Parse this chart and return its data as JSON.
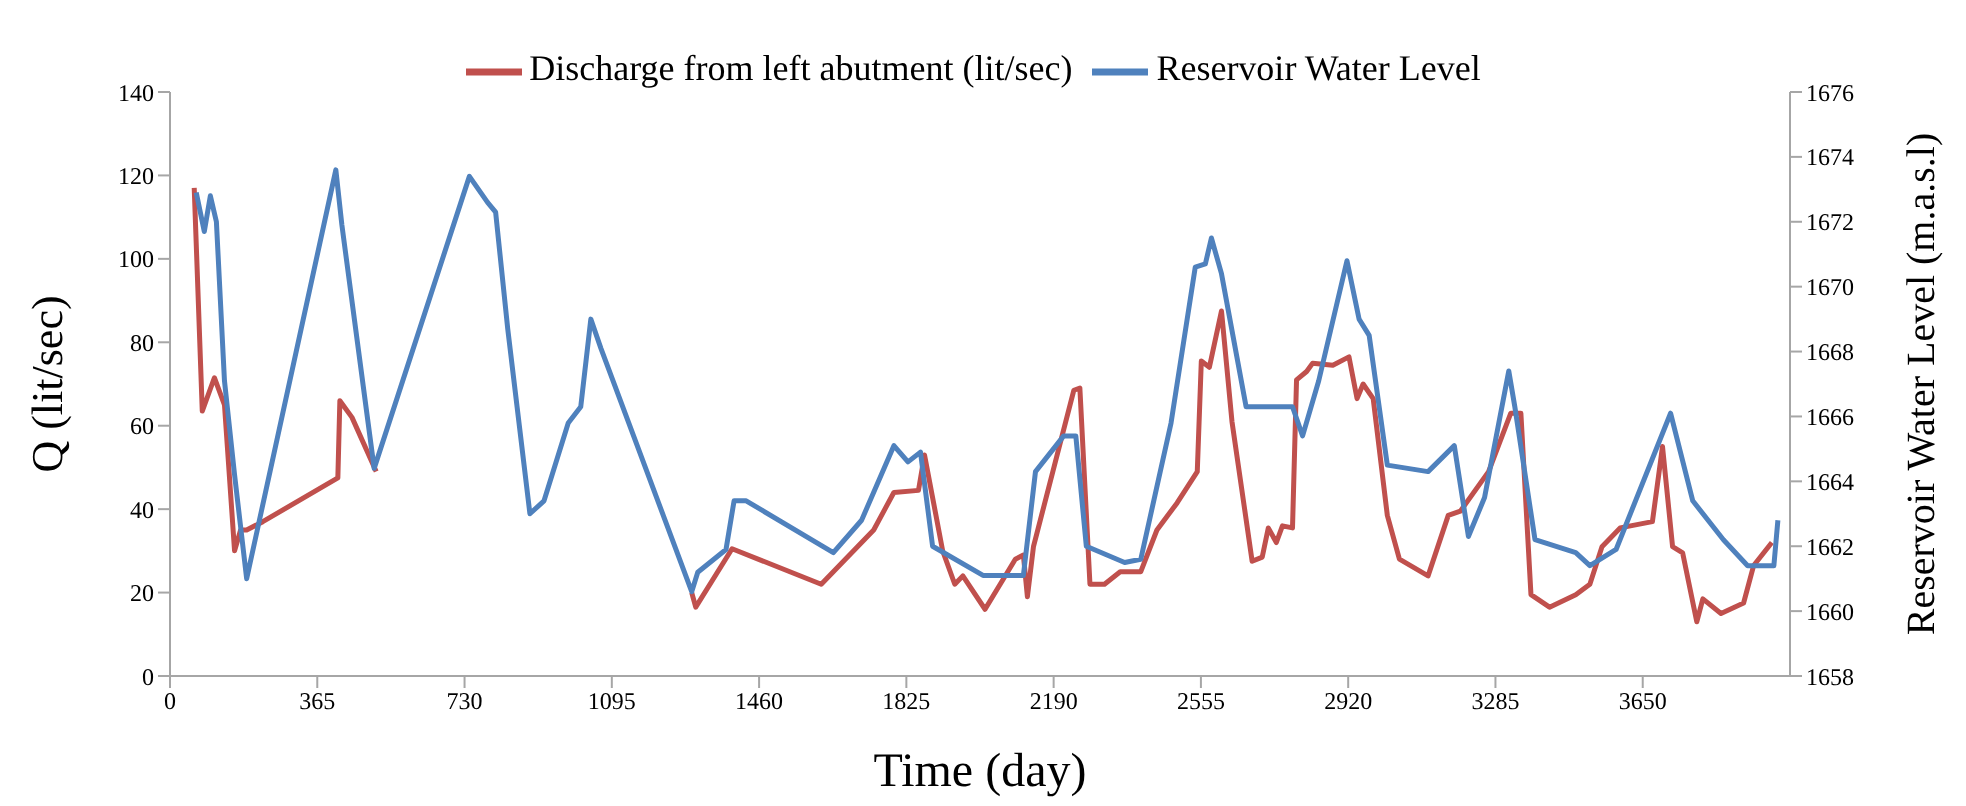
{
  "chart_data": {
    "type": "line",
    "xlabel": "Time (day)",
    "ylabel": "Q (lit/sec)",
    "y2label": "Reservoir Water Level (m.a.s.l)",
    "xlim": [
      0,
      4015
    ],
    "xticks": [
      0,
      365,
      730,
      1095,
      1460,
      1825,
      2190,
      2555,
      2920,
      3285,
      3650
    ],
    "ylim": [
      0,
      140
    ],
    "yticks": [
      0,
      20,
      40,
      60,
      80,
      100,
      120,
      140
    ],
    "y2lim": [
      1658,
      1676
    ],
    "y2ticks": [
      1658,
      1660,
      1662,
      1664,
      1666,
      1668,
      1670,
      1672,
      1674,
      1676
    ],
    "grid": false,
    "legend": "top",
    "marker": "none",
    "line_style": "solid",
    "series": [
      {
        "name": "Discharge from left abutment (lit/sec)",
        "color": "#c0504d",
        "x": [
          60,
          80,
          110,
          135,
          160,
          175,
          190,
          230,
          416,
          421,
          451,
          511,
          900,
          1293,
          1303,
          1393,
          1614,
          1744,
          1794,
          1855,
          1870,
          1915,
          1945,
          1965,
          2020,
          2095,
          2115,
          2125,
          2140,
          2240,
          2255,
          2280,
          2316,
          2355,
          2406,
          2446,
          2496,
          2546,
          2556,
          2576,
          2606,
          2632,
          2682,
          2707,
          2722,
          2742,
          2757,
          2782,
          2792,
          2817,
          2832,
          2882,
          2922,
          2942,
          2957,
          2982,
          3017,
          3047,
          3118,
          3168,
          3198,
          3268,
          3323,
          3348,
          3373,
          3419,
          3484,
          3519,
          3549,
          3594,
          3674,
          3699,
          3724,
          3749,
          3784,
          3799,
          3844,
          3900,
          3925,
          3970
        ],
        "values": [
          117,
          63.5,
          71.5,
          65,
          30,
          35,
          35,
          37,
          47.5,
          66,
          62,
          49,
          null,
          20,
          16.5,
          30.5,
          22,
          35,
          44,
          44.5,
          53,
          30,
          22,
          24,
          16,
          28,
          29,
          19,
          31,
          68.5,
          69,
          22,
          22,
          25,
          25,
          35,
          41.5,
          49,
          75.5,
          74,
          87.5,
          61,
          27.5,
          28.5,
          35.5,
          32,
          36,
          35.5,
          71,
          73,
          75,
          74.5,
          76.5,
          66.5,
          70,
          66.5,
          38.5,
          28,
          24,
          38.5,
          39.5,
          49,
          63,
          63,
          19.5,
          16.5,
          19.5,
          22,
          31,
          35.5,
          37,
          55,
          31,
          29.5,
          13,
          18.5,
          15,
          17.5,
          26.5,
          32
        ]
      },
      {
        "name": "Reservoir Water Level",
        "color": "#4f81bd",
        "axis": "y2",
        "x": [
          65,
          85,
          100,
          115,
          135,
          160,
          190,
          411,
          426,
          491,
          506,
          742,
          787,
          807,
          837,
          892,
          927,
          987,
          1018,
          1043,
          1068,
          1293,
          1308,
          1378,
          1398,
          1428,
          1644,
          1714,
          1794,
          1829,
          1860,
          1890,
          2015,
          2115,
          2145,
          2215,
          2245,
          2271,
          2366,
          2406,
          2481,
          2541,
          2566,
          2581,
          2606,
          2667,
          2732,
          2782,
          2807,
          2847,
          2917,
          2947,
          2972,
          3017,
          3118,
          3183,
          3218,
          3258,
          3318,
          3333,
          3383,
          3484,
          3519,
          3584,
          3719,
          3774,
          3850,
          3910,
          3975,
          3985
        ],
        "values": [
          1672.9,
          1671.7,
          1672.8,
          1672.0,
          1667.1,
          1664.2,
          1661.0,
          1673.6,
          1671.9,
          1665.8,
          1664.4,
          1673.4,
          1672.6,
          1672.3,
          1668.7,
          1663.0,
          1663.4,
          1665.8,
          1666.3,
          1669.0,
          1668.1,
          1660.6,
          1661.2,
          1661.9,
          1663.4,
          1663.4,
          1661.8,
          1662.8,
          1665.1,
          1664.6,
          1664.9,
          1662.0,
          1661.1,
          1661.1,
          1664.3,
          1665.4,
          1665.4,
          1662.0,
          1661.5,
          1661.6,
          1665.8,
          1670.6,
          1670.7,
          1671.5,
          1670.4,
          1666.3,
          1666.3,
          1666.3,
          1665.4,
          1667.1,
          1670.8,
          1669.0,
          1668.5,
          1664.5,
          1664.3,
          1665.1,
          1662.3,
          1663.5,
          1667.4,
          1666.3,
          1662.2,
          1661.8,
          1661.4,
          1661.9,
          1666.1,
          1663.4,
          1662.2,
          1661.4,
          1661.4,
          1662.8
        ]
      }
    ]
  }
}
